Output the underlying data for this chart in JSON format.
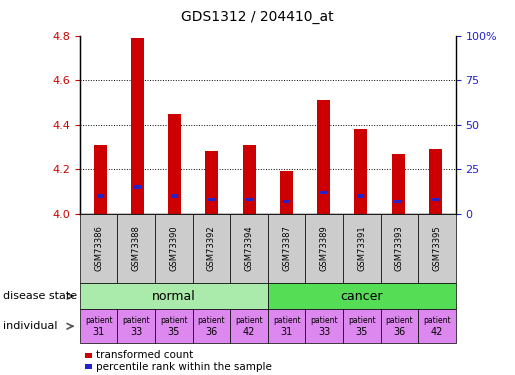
{
  "title": "GDS1312 / 204410_at",
  "samples": [
    "GSM73386",
    "GSM73388",
    "GSM73390",
    "GSM73392",
    "GSM73394",
    "GSM73387",
    "GSM73389",
    "GSM73391",
    "GSM73393",
    "GSM73395"
  ],
  "transformed_counts": [
    4.31,
    4.79,
    4.45,
    4.28,
    4.31,
    4.19,
    4.51,
    4.38,
    4.27,
    4.29
  ],
  "percentile_ranks": [
    10,
    15,
    10,
    8,
    8,
    7,
    12,
    10,
    7,
    8
  ],
  "ylim": [
    4.0,
    4.8
  ],
  "yticks": [
    4.0,
    4.2,
    4.4,
    4.6,
    4.8
  ],
  "right_yticks_pct": [
    0,
    25,
    50,
    75,
    100
  ],
  "right_ylabels": [
    "0",
    "25",
    "50",
    "75",
    "100%"
  ],
  "bar_width": 0.35,
  "bar_color": "#cc0000",
  "pct_color": "#2222cc",
  "disease_groups": [
    {
      "label": "normal",
      "start": 0,
      "end": 5,
      "color": "#aaeaaa"
    },
    {
      "label": "cancer",
      "start": 5,
      "end": 10,
      "color": "#55dd55"
    }
  ],
  "individual_numbers": [
    "31",
    "33",
    "35",
    "36",
    "42",
    "31",
    "33",
    "35",
    "36",
    "42"
  ],
  "individual_color": "#dd88ee",
  "sample_bg_color": "#cccccc",
  "title_fontsize": 10,
  "axis_label_color_left": "#cc0000",
  "axis_label_color_right": "#2222cc",
  "legend_red_label": "transformed count",
  "legend_blue_label": "percentile rank within the sample"
}
